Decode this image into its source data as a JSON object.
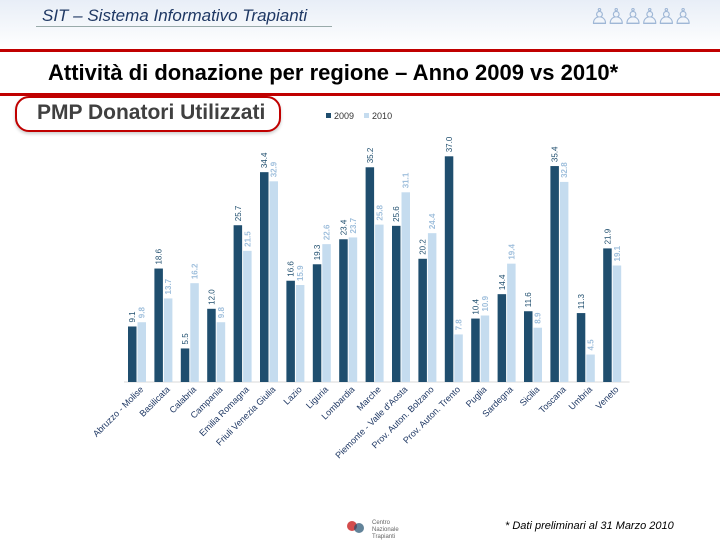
{
  "header": {
    "app_title": "SIT – Sistema Informativo Trapianti"
  },
  "page_title": "Attività di donazione per regione – Anno 2009 vs 2010*",
  "section_title": "PMP Donatori Utilizzati",
  "footnote": "* Dati preliminari al 31 Marzo 2010",
  "logo_text": "Centro Nazionale Trapianti",
  "colors": {
    "series_2009": "#1f4e6e",
    "series_2010": "#c5dcef",
    "accent": "#c00000"
  },
  "chart_data": {
    "type": "bar",
    "title": "PMP Donatori Utilizzati",
    "legend_position": "top",
    "categories": [
      "Abruzzo - Molise",
      "Basilicata",
      "Calabria",
      "Campania",
      "Emilia Romagna",
      "Friuli Venezia Giulia",
      "Lazio",
      "Liguria",
      "Lombardia",
      "Marche",
      "Piemonte - Valle d'Aosta",
      "Prov. Auton. Bolzano",
      "Prov. Auton. Trento",
      "Puglia",
      "Sardegna",
      "Sicilia",
      "Toscana",
      "Umbria",
      "Veneto"
    ],
    "series": [
      {
        "name": "2009",
        "values": [
          9.1,
          18.6,
          5.5,
          12.0,
          25.7,
          34.4,
          16.6,
          19.3,
          23.4,
          35.2,
          25.6,
          20.2,
          37.0,
          10.4,
          14.4,
          11.6,
          35.4,
          11.3,
          21.9
        ]
      },
      {
        "name": "2010",
        "values": [
          9.8,
          13.7,
          16.2,
          9.8,
          21.5,
          32.9,
          15.9,
          22.6,
          23.7,
          25.8,
          31.1,
          24.4,
          7.8,
          10.9,
          19.4,
          8.9,
          32.8,
          4.5,
          19.1
        ]
      }
    ],
    "ylim": [
      0,
      38
    ]
  }
}
